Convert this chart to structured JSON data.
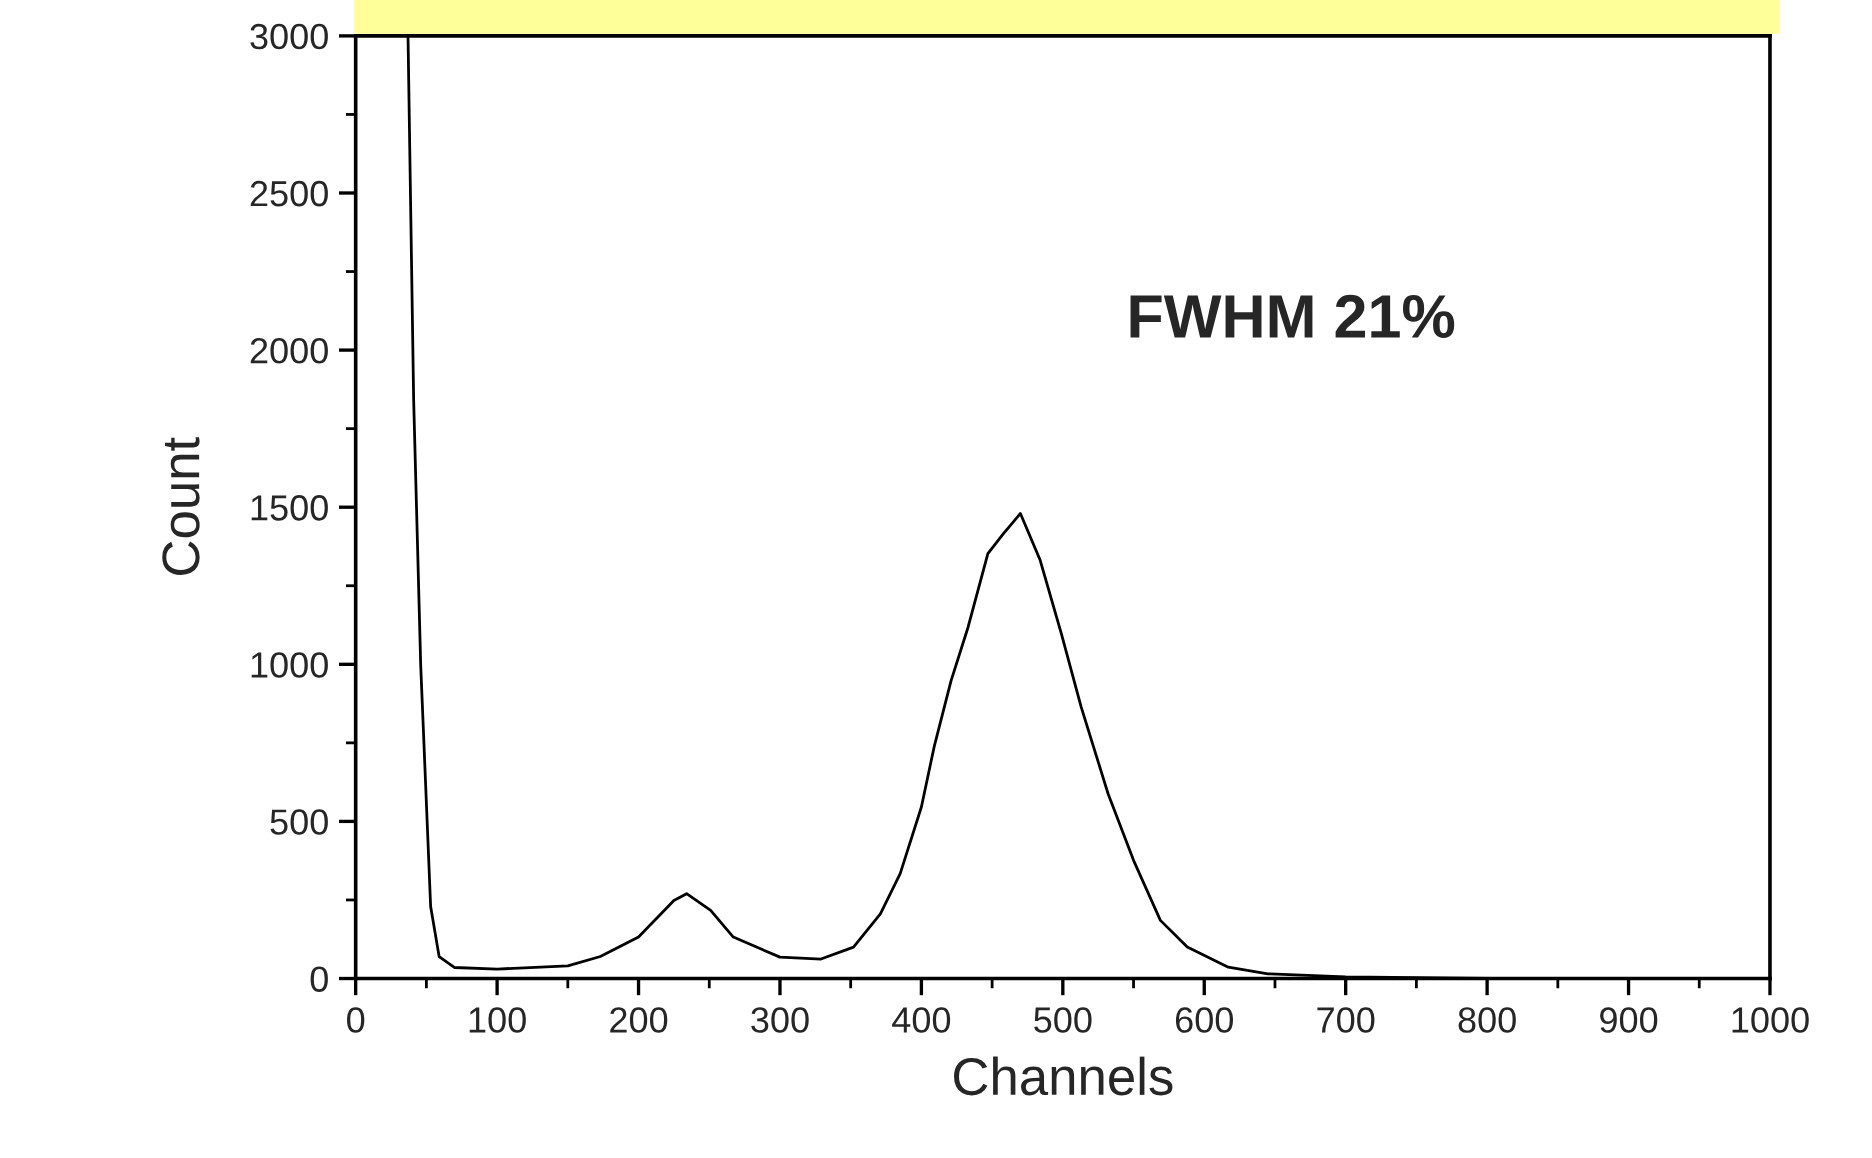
{
  "chart_data": {
    "type": "line",
    "xlabel": "Channels",
    "ylabel": "Count",
    "annotations": [
      "FWHM 21%"
    ],
    "x": [
      37,
      41,
      46,
      48,
      53,
      59,
      70,
      100,
      150,
      173,
      200,
      225,
      234,
      251,
      267,
      300,
      329,
      352,
      371,
      385,
      400,
      409,
      421,
      433,
      447,
      458,
      470,
      484,
      499,
      513,
      532,
      550,
      569,
      588,
      617,
      645,
      700,
      800,
      1000
    ],
    "series": [
      {
        "color": "#000000",
        "values": [
          3000,
          1840,
          994,
          777,
          229,
          70,
          35,
          30,
          40,
          70,
          132,
          248,
          270,
          217,
          132,
          68,
          62,
          100,
          206,
          334,
          546,
          737,
          948,
          1118,
          1352,
          1416,
          1480,
          1331,
          1097,
          864,
          588,
          376,
          185,
          100,
          36,
          15,
          5,
          0,
          0
        ]
      }
    ],
    "xlim": [
      0,
      1000
    ],
    "ylim": [
      0,
      3000
    ],
    "xticks": [
      0,
      {
        "value": 50,
        "label": null
      },
      100,
      {
        "value": 150,
        "label": null
      },
      200,
      {
        "value": 250,
        "label": null
      },
      300,
      {
        "value": 350,
        "label": null
      },
      400,
      {
        "value": 450,
        "label": null
      },
      500,
      {
        "value": 550,
        "label": null
      },
      600,
      {
        "value": 650,
        "label": null
      },
      700,
      {
        "value": 750,
        "label": null
      },
      800,
      {
        "value": 850,
        "label": null
      },
      900,
      {
        "value": 950,
        "label": null
      },
      1000
    ],
    "yticks": [
      0,
      {
        "value": 250,
        "label": null
      },
      500,
      {
        "value": 750,
        "label": null
      },
      1000,
      {
        "value": 1250,
        "label": null
      },
      1500,
      {
        "value": 1750,
        "label": null
      },
      2000,
      {
        "value": 2250,
        "label": null
      },
      2500,
      {
        "value": 2750,
        "label": null
      },
      3000
    ],
    "grid": false,
    "legend": false,
    "marker": "none",
    "line_style": "solid"
  }
}
